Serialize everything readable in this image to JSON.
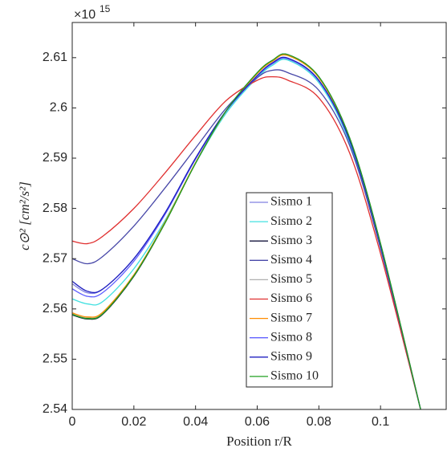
{
  "chart_data": {
    "type": "line",
    "y_multiplier_base": "×10",
    "y_multiplier_exponent": "15",
    "xlabel": "Position r/R",
    "ylabel": "c⊙² [cm²/s²]",
    "x": [
      0,
      0.005,
      0.01,
      0.02,
      0.03,
      0.04,
      0.05,
      0.06,
      0.065,
      0.07,
      0.08,
      0.09,
      0.1,
      0.113
    ],
    "xlim": [
      0,
      0.1213
    ],
    "xticks": [
      0,
      0.02,
      0.04,
      0.06,
      0.08,
      0.1
    ],
    "ylim": [
      2.54,
      2.617
    ],
    "yticks": [
      2.54,
      2.55,
      2.56,
      2.57,
      2.58,
      2.59,
      2.6,
      2.61
    ],
    "series": [
      {
        "name": "Sismo 1",
        "color": "#8080e0",
        "values": [
          2.565,
          2.5632,
          2.564,
          2.57,
          2.579,
          2.59,
          2.5995,
          2.6063,
          2.6088,
          2.6097,
          2.6053,
          2.5933,
          2.5725,
          2.54
        ]
      },
      {
        "name": "Sismo 2",
        "color": "#40e0e0",
        "values": [
          2.562,
          2.561,
          2.5615,
          2.568,
          2.5775,
          2.589,
          2.599,
          2.606,
          2.6085,
          2.6095,
          2.605,
          2.593,
          2.5725,
          2.54
        ]
      },
      {
        "name": "Sismo 3",
        "color": "#14143c",
        "values": [
          2.5588,
          2.558,
          2.559,
          2.5665,
          2.577,
          2.589,
          2.5995,
          2.607,
          2.6095,
          2.6106,
          2.6062,
          2.594,
          2.573,
          2.54
        ]
      },
      {
        "name": "Sismo 4",
        "color": "#4848a8",
        "values": [
          2.57,
          2.569,
          2.5705,
          2.5765,
          2.584,
          2.592,
          2.6,
          2.606,
          2.6075,
          2.607,
          2.6035,
          2.5925,
          2.572,
          2.54
        ]
      },
      {
        "name": "Sismo 5",
        "color": "#b0b0b0",
        "values": [
          2.559,
          2.5582,
          2.5592,
          2.5667,
          2.5771,
          2.5891,
          2.5995,
          2.6069,
          2.6094,
          2.6105,
          2.6061,
          2.5939,
          2.5729,
          2.54
        ]
      },
      {
        "name": "Sismo 6",
        "color": "#e03030",
        "values": [
          2.5735,
          2.573,
          2.5745,
          2.58,
          2.587,
          2.5945,
          2.6015,
          2.6055,
          2.6062,
          2.6055,
          2.602,
          2.591,
          2.571,
          2.54
        ]
      },
      {
        "name": "Sismo 7",
        "color": "#ff8c00",
        "values": [
          2.5592,
          2.5584,
          2.5594,
          2.5668,
          2.5772,
          2.5891,
          2.5994,
          2.6068,
          2.6093,
          2.6104,
          2.606,
          2.5938,
          2.5728,
          2.54
        ]
      },
      {
        "name": "Sismo 8",
        "color": "#6060ff",
        "values": [
          2.564,
          2.5625,
          2.5633,
          2.5695,
          2.5787,
          2.5898,
          2.5994,
          2.6063,
          2.6088,
          2.6098,
          2.6054,
          2.5934,
          2.5726,
          2.54
        ]
      },
      {
        "name": "Sismo 9",
        "color": "#2020c0",
        "values": [
          2.5655,
          2.5635,
          2.564,
          2.57,
          2.579,
          2.59,
          2.5995,
          2.6064,
          2.609,
          2.6099,
          2.6055,
          2.5935,
          2.5727,
          2.54
        ]
      },
      {
        "name": "Sismo 10",
        "color": "#20a020",
        "values": [
          2.5589,
          2.5581,
          2.5591,
          2.5666,
          2.577,
          2.589,
          2.5995,
          2.607,
          2.6095,
          2.6106,
          2.6062,
          2.594,
          2.573,
          2.54
        ]
      }
    ]
  }
}
